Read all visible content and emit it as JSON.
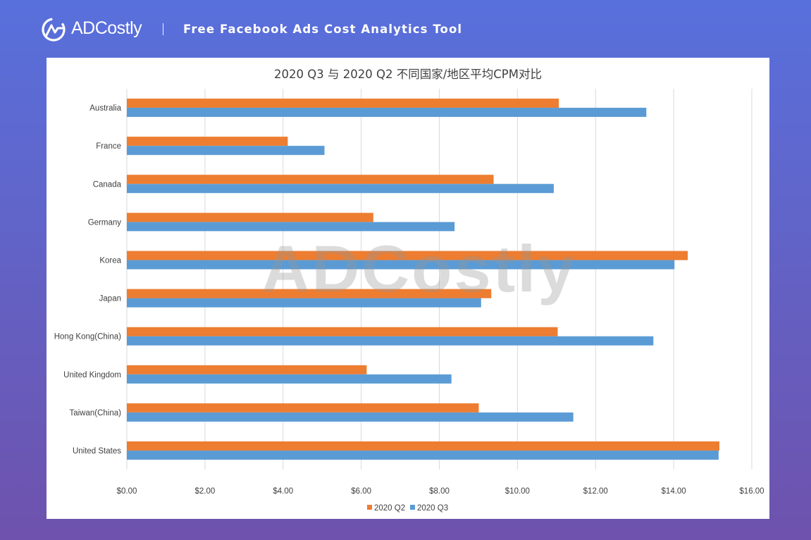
{
  "brand": {
    "name": "ADCostly",
    "logo_icon": "adcostly-logo-icon"
  },
  "header": {
    "tagline": "Free Facebook Ads Cost Analytics Tool"
  },
  "watermark": "ADCostly",
  "colors": {
    "q2": "#ED7D31",
    "q3": "#5B9BD5",
    "grid": "#D9D9D9",
    "text": "#404040"
  },
  "chart_data": {
    "type": "bar",
    "orientation": "horizontal",
    "title": "2020 Q3 与 2020 Q2 不同国家/地区平均CPM对比",
    "categories": [
      "Australia",
      "France",
      "Canada",
      "Germany",
      "Korea",
      "Japan",
      "Hong Kong(China)",
      "United Kingdom",
      "Taiwan(China)",
      "United States"
    ],
    "series": [
      {
        "name": "2020 Q2",
        "values": [
          11.06,
          4.12,
          9.39,
          6.31,
          14.36,
          9.33,
          11.03,
          6.14,
          9.01,
          15.17
        ]
      },
      {
        "name": "2020 Q3",
        "values": [
          13.3,
          5.06,
          10.93,
          8.39,
          14.02,
          9.07,
          13.48,
          8.31,
          11.43,
          15.15
        ]
      }
    ],
    "xlim": [
      0,
      16
    ],
    "xticks": [
      "$0.00",
      "$2.00",
      "$4.00",
      "$6.00",
      "$8.00",
      "$10.00",
      "$12.00",
      "$14.00",
      "$16.00"
    ],
    "xlabel": "",
    "ylabel": "",
    "grid": true,
    "legend": "bottom"
  }
}
